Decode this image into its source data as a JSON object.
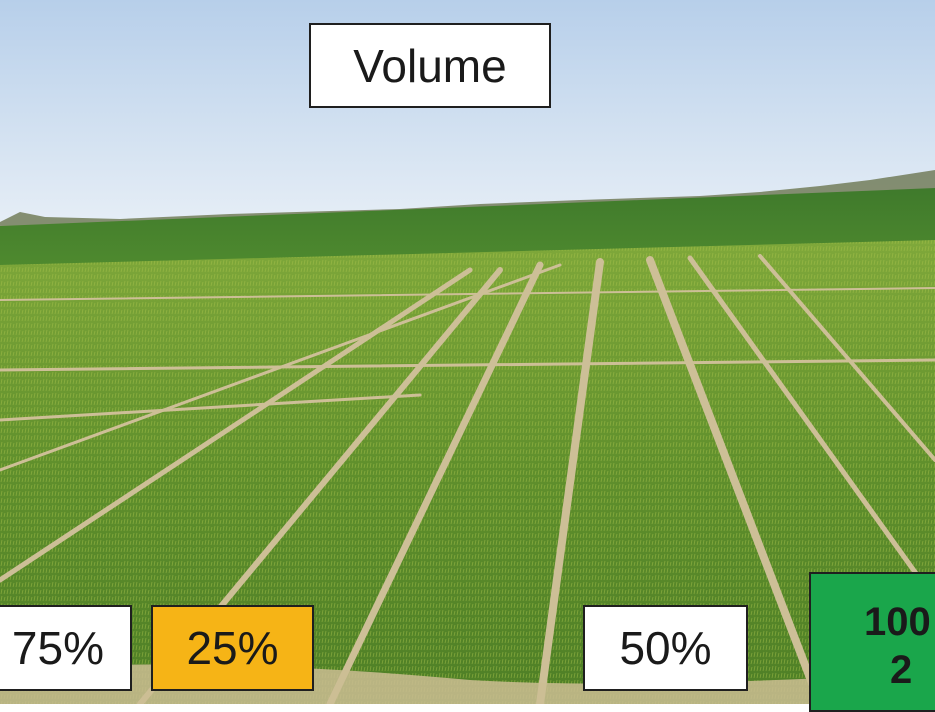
{
  "title": "Volume",
  "labels": {
    "left": "75%",
    "second": "25%",
    "middle": "50%",
    "right_line1": "100",
    "right_line2": "2"
  },
  "colors": {
    "sky": "#cfdff0",
    "field": "#5c8f2e",
    "soil": "#cdbf97",
    "label_yellow": "#f6b416",
    "label_green": "#1aa64b"
  }
}
